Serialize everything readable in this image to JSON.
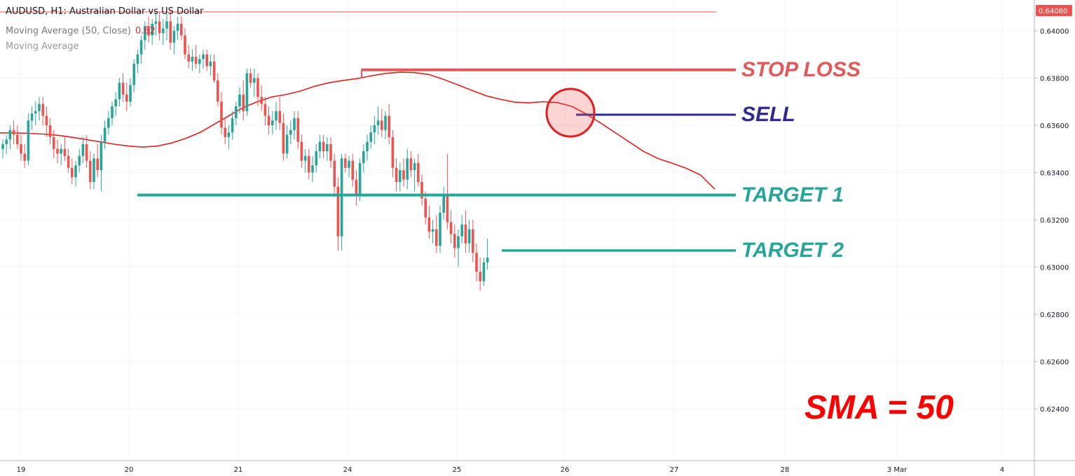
{
  "header": {
    "symbol_line": "AUDUSD, H1: Australian Dollar vs US Dollar",
    "indicator_line": "Moving Average (50, Close)",
    "indicator_value": "0.62",
    "indicator_line2": "Moving Average"
  },
  "price_tag": "0.64080",
  "colors": {
    "up": "#26a69a",
    "down": "#ef5350",
    "ma": "#e02020",
    "stop": "#e05a5a",
    "sell": "#2e2a8f",
    "target": "#26a69a",
    "sma_text": "#ff0000"
  },
  "annotations": {
    "stop_loss": "STOP LOSS",
    "sell": "SELL",
    "target1": "TARGET 1",
    "target2": "TARGET 2",
    "sma": "SMA = 50"
  },
  "chart_data": {
    "type": "candlestick",
    "x_tick_labels": [
      "19",
      "20",
      "21",
      "24",
      "25",
      "26",
      "27",
      "28",
      "3 Mar",
      "4"
    ],
    "y_tick_labels": [
      "0.64000",
      "0.63800",
      "0.63600",
      "0.63400",
      "0.63200",
      "0.63000",
      "0.62800",
      "0.62600",
      "0.62400"
    ],
    "ylim": [
      0.622,
      0.6412
    ],
    "levels": {
      "top_line": 0.6408,
      "stop_loss": 0.63835,
      "sell": 0.63645,
      "target1": 0.63305,
      "target2": 0.6307
    },
    "candles_ohlc": [
      [
        0.635,
        0.6354,
        0.6346,
        0.6352
      ],
      [
        0.6352,
        0.6356,
        0.6348,
        0.6354
      ],
      [
        0.6354,
        0.636,
        0.635,
        0.6358
      ],
      [
        0.6358,
        0.6362,
        0.6352,
        0.6356
      ],
      [
        0.6356,
        0.636,
        0.635,
        0.6352
      ],
      [
        0.6352,
        0.6356,
        0.6345,
        0.6348
      ],
      [
        0.6348,
        0.6352,
        0.6342,
        0.6345
      ],
      [
        0.6345,
        0.6365,
        0.6343,
        0.6362
      ],
      [
        0.6362,
        0.6368,
        0.6358,
        0.6365
      ],
      [
        0.6365,
        0.637,
        0.636,
        0.6366
      ],
      [
        0.6366,
        0.6372,
        0.6362,
        0.6369
      ],
      [
        0.6369,
        0.6372,
        0.636,
        0.6364
      ],
      [
        0.6364,
        0.6368,
        0.6355,
        0.636
      ],
      [
        0.636,
        0.6363,
        0.6352,
        0.6355
      ],
      [
        0.6355,
        0.6358,
        0.6346,
        0.635
      ],
      [
        0.635,
        0.6354,
        0.6344,
        0.6348
      ],
      [
        0.6348,
        0.6352,
        0.6343,
        0.635
      ],
      [
        0.635,
        0.6355,
        0.6345,
        0.6347
      ],
      [
        0.6347,
        0.635,
        0.634,
        0.6342
      ],
      [
        0.6342,
        0.6346,
        0.6335,
        0.6338
      ],
      [
        0.6338,
        0.6345,
        0.6334,
        0.6343
      ],
      [
        0.6343,
        0.635,
        0.634,
        0.6347
      ],
      [
        0.6347,
        0.6355,
        0.6344,
        0.6352
      ],
      [
        0.6352,
        0.6356,
        0.6342,
        0.6345
      ],
      [
        0.6345,
        0.6349,
        0.6333,
        0.6336
      ],
      [
        0.6336,
        0.6348,
        0.6333,
        0.6346
      ],
      [
        0.6346,
        0.6352,
        0.6338,
        0.6341
      ],
      [
        0.6341,
        0.6356,
        0.6332,
        0.6353
      ],
      [
        0.6353,
        0.6362,
        0.635,
        0.6359
      ],
      [
        0.6359,
        0.6366,
        0.6356,
        0.6363
      ],
      [
        0.6363,
        0.637,
        0.636,
        0.6368
      ],
      [
        0.6368,
        0.6374,
        0.6364,
        0.6371
      ],
      [
        0.6371,
        0.638,
        0.6368,
        0.6378
      ],
      [
        0.6378,
        0.6382,
        0.637,
        0.6373
      ],
      [
        0.6373,
        0.6378,
        0.6366,
        0.637
      ],
      [
        0.637,
        0.638,
        0.6368,
        0.6377
      ],
      [
        0.6377,
        0.6388,
        0.6374,
        0.6386
      ],
      [
        0.6386,
        0.6392,
        0.6382,
        0.639
      ],
      [
        0.639,
        0.6398,
        0.6386,
        0.6396
      ],
      [
        0.6396,
        0.6404,
        0.6392,
        0.6402
      ],
      [
        0.6402,
        0.6406,
        0.6395,
        0.6398
      ],
      [
        0.6398,
        0.6405,
        0.6394,
        0.6403
      ],
      [
        0.6403,
        0.6408,
        0.6398,
        0.6404
      ],
      [
        0.6404,
        0.6408,
        0.6396,
        0.6399
      ],
      [
        0.6399,
        0.6405,
        0.6394,
        0.6401
      ],
      [
        0.6401,
        0.6408,
        0.6396,
        0.6404
      ],
      [
        0.6404,
        0.6408,
        0.6392,
        0.6395
      ],
      [
        0.6395,
        0.6402,
        0.639,
        0.64
      ],
      [
        0.64,
        0.6406,
        0.6396,
        0.6403
      ],
      [
        0.6403,
        0.6406,
        0.6396,
        0.6398
      ],
      [
        0.6398,
        0.6401,
        0.6388,
        0.639
      ],
      [
        0.639,
        0.6394,
        0.6384,
        0.6387
      ],
      [
        0.6387,
        0.6392,
        0.6383,
        0.6389
      ],
      [
        0.6389,
        0.6394,
        0.6384,
        0.6386
      ],
      [
        0.6386,
        0.639,
        0.6382,
        0.6388
      ],
      [
        0.6388,
        0.6392,
        0.6384,
        0.639
      ],
      [
        0.639,
        0.6392,
        0.6383,
        0.6385
      ],
      [
        0.6385,
        0.639,
        0.6381,
        0.6387
      ],
      [
        0.6387,
        0.639,
        0.6378,
        0.6379
      ],
      [
        0.6379,
        0.6382,
        0.6368,
        0.637
      ],
      [
        0.637,
        0.6374,
        0.6356,
        0.6359
      ],
      [
        0.6359,
        0.6363,
        0.6352,
        0.6355
      ],
      [
        0.6355,
        0.636,
        0.635,
        0.6357
      ],
      [
        0.6357,
        0.6366,
        0.6354,
        0.6363
      ],
      [
        0.6363,
        0.637,
        0.636,
        0.6368
      ],
      [
        0.6368,
        0.6376,
        0.6365,
        0.6373
      ],
      [
        0.6373,
        0.6379,
        0.6362,
        0.6366
      ],
      [
        0.6366,
        0.6384,
        0.6364,
        0.6382
      ],
      [
        0.6382,
        0.6384,
        0.6376,
        0.6378
      ],
      [
        0.6378,
        0.6384,
        0.6372,
        0.638
      ],
      [
        0.638,
        0.6382,
        0.6368,
        0.6372
      ],
      [
        0.6372,
        0.6377,
        0.6366,
        0.6369
      ],
      [
        0.6369,
        0.6372,
        0.636,
        0.6364
      ],
      [
        0.6364,
        0.6368,
        0.6356,
        0.636
      ],
      [
        0.636,
        0.6366,
        0.6356,
        0.6362
      ],
      [
        0.6362,
        0.637,
        0.6358,
        0.6366
      ],
      [
        0.6366,
        0.6372,
        0.6358,
        0.6361
      ],
      [
        0.6361,
        0.6365,
        0.6345,
        0.6348
      ],
      [
        0.6348,
        0.636,
        0.6346,
        0.6356
      ],
      [
        0.6356,
        0.6362,
        0.6352,
        0.6358
      ],
      [
        0.6358,
        0.6366,
        0.6354,
        0.6363
      ],
      [
        0.6363,
        0.6366,
        0.635,
        0.6353
      ],
      [
        0.6353,
        0.6356,
        0.6342,
        0.6345
      ],
      [
        0.6345,
        0.635,
        0.634,
        0.6347
      ],
      [
        0.6347,
        0.635,
        0.6337,
        0.634
      ],
      [
        0.634,
        0.6347,
        0.6336,
        0.6343
      ],
      [
        0.6343,
        0.6352,
        0.634,
        0.6349
      ],
      [
        0.6349,
        0.6356,
        0.6346,
        0.6353
      ],
      [
        0.6353,
        0.6356,
        0.6346,
        0.6349
      ],
      [
        0.6349,
        0.6355,
        0.6345,
        0.6352
      ],
      [
        0.6352,
        0.6355,
        0.6342,
        0.6345
      ],
      [
        0.6345,
        0.6348,
        0.633,
        0.6334
      ],
      [
        0.6334,
        0.6338,
        0.6307,
        0.6313
      ],
      [
        0.6313,
        0.6348,
        0.6307,
        0.6346
      ],
      [
        0.6346,
        0.6348,
        0.634,
        0.6342
      ],
      [
        0.6342,
        0.6347,
        0.6338,
        0.6345
      ],
      [
        0.6345,
        0.6348,
        0.6334,
        0.6337
      ],
      [
        0.6337,
        0.6341,
        0.6326,
        0.633
      ],
      [
        0.633,
        0.6346,
        0.6328,
        0.6344
      ],
      [
        0.6344,
        0.6352,
        0.634,
        0.6349
      ],
      [
        0.6349,
        0.6356,
        0.6345,
        0.6353
      ],
      [
        0.6353,
        0.636,
        0.635,
        0.6357
      ],
      [
        0.6357,
        0.6364,
        0.6352,
        0.636
      ],
      [
        0.636,
        0.6368,
        0.6356,
        0.6362
      ],
      [
        0.6362,
        0.6367,
        0.6355,
        0.6358
      ],
      [
        0.6358,
        0.6366,
        0.6354,
        0.6364
      ],
      [
        0.6364,
        0.6369,
        0.6352,
        0.6355
      ],
      [
        0.6355,
        0.6358,
        0.6338,
        0.6342
      ],
      [
        0.6342,
        0.6346,
        0.6332,
        0.6336
      ],
      [
        0.6336,
        0.6344,
        0.6332,
        0.6341
      ],
      [
        0.6341,
        0.6346,
        0.6334,
        0.6337
      ],
      [
        0.6337,
        0.635,
        0.6333,
        0.6346
      ],
      [
        0.6346,
        0.6349,
        0.6338,
        0.6341
      ],
      [
        0.6341,
        0.6346,
        0.6332,
        0.6344
      ],
      [
        0.6344,
        0.6348,
        0.6334,
        0.6336
      ],
      [
        0.6336,
        0.6339,
        0.6326,
        0.6329
      ],
      [
        0.6329,
        0.6332,
        0.6318,
        0.6321
      ],
      [
        0.6321,
        0.6326,
        0.6312,
        0.6315
      ],
      [
        0.6315,
        0.632,
        0.631,
        0.6316
      ],
      [
        0.6316,
        0.6322,
        0.6306,
        0.6309
      ],
      [
        0.6309,
        0.6326,
        0.6306,
        0.6323
      ],
      [
        0.6323,
        0.6334,
        0.632,
        0.6331
      ],
      [
        0.6331,
        0.6348,
        0.6316,
        0.6319
      ],
      [
        0.6319,
        0.6324,
        0.631,
        0.6314
      ],
      [
        0.6314,
        0.6318,
        0.6304,
        0.6308
      ],
      [
        0.6308,
        0.6316,
        0.63,
        0.6313
      ],
      [
        0.6313,
        0.6322,
        0.631,
        0.6318
      ],
      [
        0.6318,
        0.6324,
        0.6306,
        0.631
      ],
      [
        0.631,
        0.632,
        0.6306,
        0.6316
      ],
      [
        0.6316,
        0.632,
        0.6302,
        0.6306
      ],
      [
        0.6306,
        0.631,
        0.6294,
        0.6298
      ],
      [
        0.6298,
        0.6304,
        0.629,
        0.6294
      ],
      [
        0.6294,
        0.6304,
        0.6292,
        0.6302
      ],
      [
        0.6302,
        0.6312,
        0.6299,
        0.6304
      ]
    ],
    "moving_average_50": [
      0.63568,
      0.63568,
      0.63566,
      0.63563,
      0.63558,
      0.6355,
      0.6354,
      0.6353,
      0.6352,
      0.63512,
      0.63508,
      0.63512,
      0.63525,
      0.63545,
      0.6357,
      0.63605,
      0.6364,
      0.63675,
      0.637,
      0.6372,
      0.6373,
      0.63745,
      0.63765,
      0.6378,
      0.6379,
      0.63798,
      0.6381,
      0.6382,
      0.63825,
      0.63823,
      0.63815,
      0.63795,
      0.63772,
      0.63748,
      0.63725,
      0.6371,
      0.63698,
      0.63695,
      0.637,
      0.63696,
      0.6368,
      0.63648,
      0.6361,
      0.6357,
      0.6353,
      0.6349,
      0.6346,
      0.6344,
      0.63418,
      0.6339,
      0.6333
    ]
  }
}
